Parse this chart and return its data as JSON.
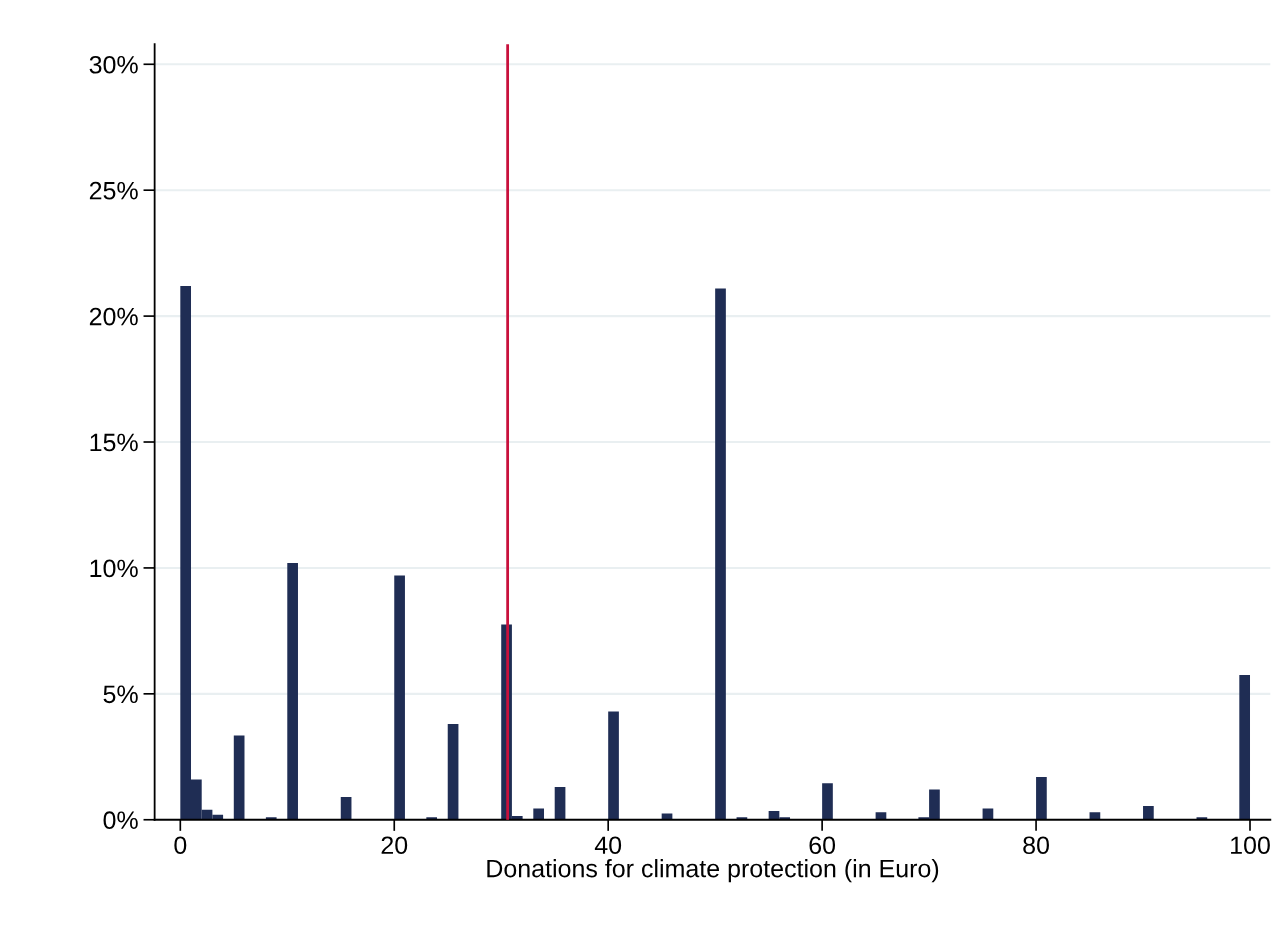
{
  "chart_data": {
    "type": "histogram",
    "xlabel": "Donations for climate protection (in Euro)",
    "bins": [
      0,
      1,
      2,
      3,
      4,
      5,
      6,
      7,
      8,
      9,
      10,
      11,
      12,
      13,
      14,
      15,
      16,
      17,
      18,
      19,
      20,
      21,
      22,
      23,
      24,
      25,
      26,
      27,
      28,
      29,
      30,
      31,
      32,
      33,
      34,
      35,
      36,
      37,
      38,
      39,
      40,
      41,
      42,
      43,
      44,
      45,
      46,
      47,
      48,
      49,
      50,
      51,
      52,
      53,
      54,
      55,
      56,
      57,
      58,
      59,
      60,
      61,
      62,
      63,
      64,
      65,
      66,
      67,
      68,
      69,
      70,
      71,
      72,
      73,
      74,
      75,
      76,
      77,
      78,
      79,
      80,
      81,
      82,
      83,
      84,
      85,
      86,
      87,
      88,
      89,
      90,
      91,
      92,
      93,
      94,
      95,
      96,
      97,
      98,
      99,
      100
    ],
    "values": [
      21.2,
      1.6,
      0.4,
      0.2,
      0,
      3.35,
      0,
      0.02,
      0.1,
      0,
      10.2,
      0,
      0,
      0,
      0,
      0.9,
      0,
      0,
      0,
      0,
      9.7,
      0,
      0,
      0.1,
      0,
      3.8,
      0,
      0,
      0,
      0.02,
      7.75,
      0.15,
      0,
      0.45,
      0,
      1.3,
      0,
      0.02,
      0,
      0,
      4.3,
      0,
      0,
      0,
      0.02,
      0.25,
      0,
      0,
      0,
      0.02,
      21.1,
      0,
      0.1,
      0,
      0,
      0.35,
      0.1,
      0,
      0,
      0.02,
      1.45,
      0,
      0,
      0,
      0,
      0.3,
      0,
      0,
      0,
      0.1,
      1.2,
      0,
      0,
      0,
      0,
      0.45,
      0,
      0.02,
      0.02,
      0,
      1.7,
      0,
      0,
      0,
      0.02,
      0.3,
      0,
      0,
      0.02,
      0,
      0.55,
      0,
      0,
      0,
      0,
      0.1,
      0,
      0,
      0,
      5.75
    ],
    "color": "#1f2d54",
    "xlim": [
      -2.4,
      101.9
    ],
    "xticks": [
      0,
      20,
      40,
      60,
      80,
      100
    ],
    "ylim": [
      0,
      30.8
    ],
    "yticks": [
      {
        "value": 0,
        "label": "0%"
      },
      {
        "value": 5,
        "label": "5%"
      },
      {
        "value": 10,
        "label": "10%"
      },
      {
        "value": 15,
        "label": "15%"
      },
      {
        "value": 20,
        "label": "20%"
      },
      {
        "value": 25,
        "label": "25%"
      },
      {
        "value": 30,
        "label": "30%"
      }
    ],
    "ref_lines": [
      {
        "axis": "x",
        "value": 30.6,
        "color": "#c8103c"
      }
    ],
    "grid": "y"
  }
}
